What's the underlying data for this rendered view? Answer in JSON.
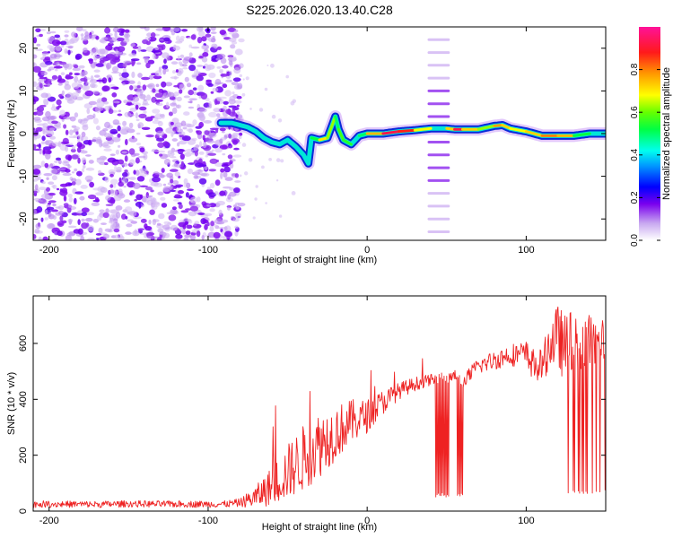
{
  "figure_title": "S225.2026.020.13.40.C28",
  "chart_data": [
    {
      "type": "heatmap",
      "title": "S225.2026.020.13.40.C28",
      "xlabel": "Height of straight line (km)",
      "ylabel": "Frequency (Hz)",
      "xlim": [
        -210,
        150
      ],
      "ylim": [
        -25,
        25
      ],
      "x_ticks": [
        -200,
        -100,
        0,
        100
      ],
      "y_ticks": [
        -20,
        -10,
        0,
        10,
        20
      ],
      "colorbar": {
        "label": "Normalized spectral amplitude",
        "range": [
          0,
          1
        ],
        "ticks": [
          0.0,
          0.2,
          0.4,
          0.6,
          0.8
        ],
        "tick_labels": [
          "0.0",
          "0.2",
          "0.4",
          "0.6",
          "0.8"
        ]
      },
      "ridge": {
        "x": [
          -92,
          -85,
          -80,
          -75,
          -70,
          -65,
          -60,
          -55,
          -50,
          -45,
          -40,
          -37,
          -35,
          -30,
          -25,
          -20,
          -18,
          -15,
          -10,
          -5,
          0,
          10,
          20,
          30,
          40,
          45,
          50,
          55,
          60,
          70,
          80,
          85,
          90,
          100,
          110,
          120,
          130,
          140,
          150
        ],
        "y": [
          2.5,
          2.5,
          2.0,
          1.5,
          0.5,
          -1.0,
          -2.0,
          -2.5,
          -1.5,
          -3.0,
          -5.0,
          -7.0,
          -1.0,
          -1.5,
          -1.0,
          4.0,
          1.0,
          -1.5,
          -2.5,
          -0.5,
          0.0,
          0.0,
          0.5,
          0.8,
          1.2,
          1.2,
          1.2,
          1.0,
          1.0,
          1.0,
          1.8,
          2.0,
          1.2,
          0.5,
          -0.5,
          -0.5,
          -0.5,
          0.0,
          0.0
        ],
        "amplitude": [
          0.45,
          0.45,
          0.45,
          0.45,
          0.45,
          0.45,
          0.45,
          0.4,
          0.4,
          0.4,
          0.35,
          0.3,
          0.45,
          0.6,
          0.8,
          0.45,
          0.55,
          0.6,
          0.5,
          0.45,
          0.55,
          0.95,
          0.9,
          0.85,
          0.5,
          0.4,
          0.5,
          0.95,
          0.9,
          0.55,
          0.7,
          0.85,
          0.6,
          0.75,
          0.7,
          0.9,
          0.6,
          0.45,
          0.45
        ]
      },
      "comb_bands": {
        "x_range": [
          38,
          52
        ],
        "frequencies": [
          -23,
          -20,
          -17,
          -14,
          -11,
          -8,
          -5,
          -2,
          1,
          4,
          7,
          10,
          13,
          16,
          19,
          22
        ]
      },
      "noise_region_x": [
        -210,
        -83
      ]
    },
    {
      "type": "line",
      "xlabel": "Height of straight line (km)",
      "ylabel": "SNR (10 * v/v)",
      "xlim": [
        -210,
        150
      ],
      "ylim": [
        0,
        770
      ],
      "x_ticks": [
        -200,
        -100,
        0,
        100
      ],
      "y_ticks": [
        0,
        200,
        400,
        600
      ],
      "series": [
        {
          "name": "SNR",
          "color": "#ee2222",
          "x": [
            -210,
            -190,
            -170,
            -150,
            -130,
            -110,
            -90,
            -80,
            -70,
            -60,
            -50,
            -40,
            -30,
            -20,
            -10,
            0,
            10,
            20,
            30,
            40,
            43,
            45,
            50,
            55,
            60,
            62,
            65,
            70,
            80,
            90,
            100,
            105,
            110,
            115,
            120,
            125,
            130,
            135,
            140,
            145,
            150
          ],
          "values": [
            25,
            25,
            24,
            26,
            25,
            25,
            25,
            30,
            50,
            90,
            140,
            190,
            240,
            280,
            320,
            340,
            390,
            430,
            455,
            470,
            470,
            480,
            470,
            485,
            460,
            470,
            490,
            520,
            540,
            560,
            560,
            520,
            520,
            600,
            620,
            580,
            620,
            560,
            620,
            600,
            610
          ],
          "noise_amplitude": [
            12,
            12,
            12,
            12,
            12,
            12,
            12,
            15,
            40,
            70,
            100,
            120,
            120,
            100,
            80,
            60,
            45,
            30,
            25,
            20,
            20,
            20,
            20,
            20,
            20,
            25,
            30,
            30,
            35,
            40,
            50,
            60,
            60,
            90,
            120,
            120,
            120,
            100,
            90,
            80,
            80
          ]
        }
      ],
      "dropout_ranges": [
        {
          "x_range": [
            43,
            62
          ],
          "min": 50
        },
        {
          "x_range": [
            125,
            150
          ],
          "min": 60
        }
      ]
    }
  ]
}
